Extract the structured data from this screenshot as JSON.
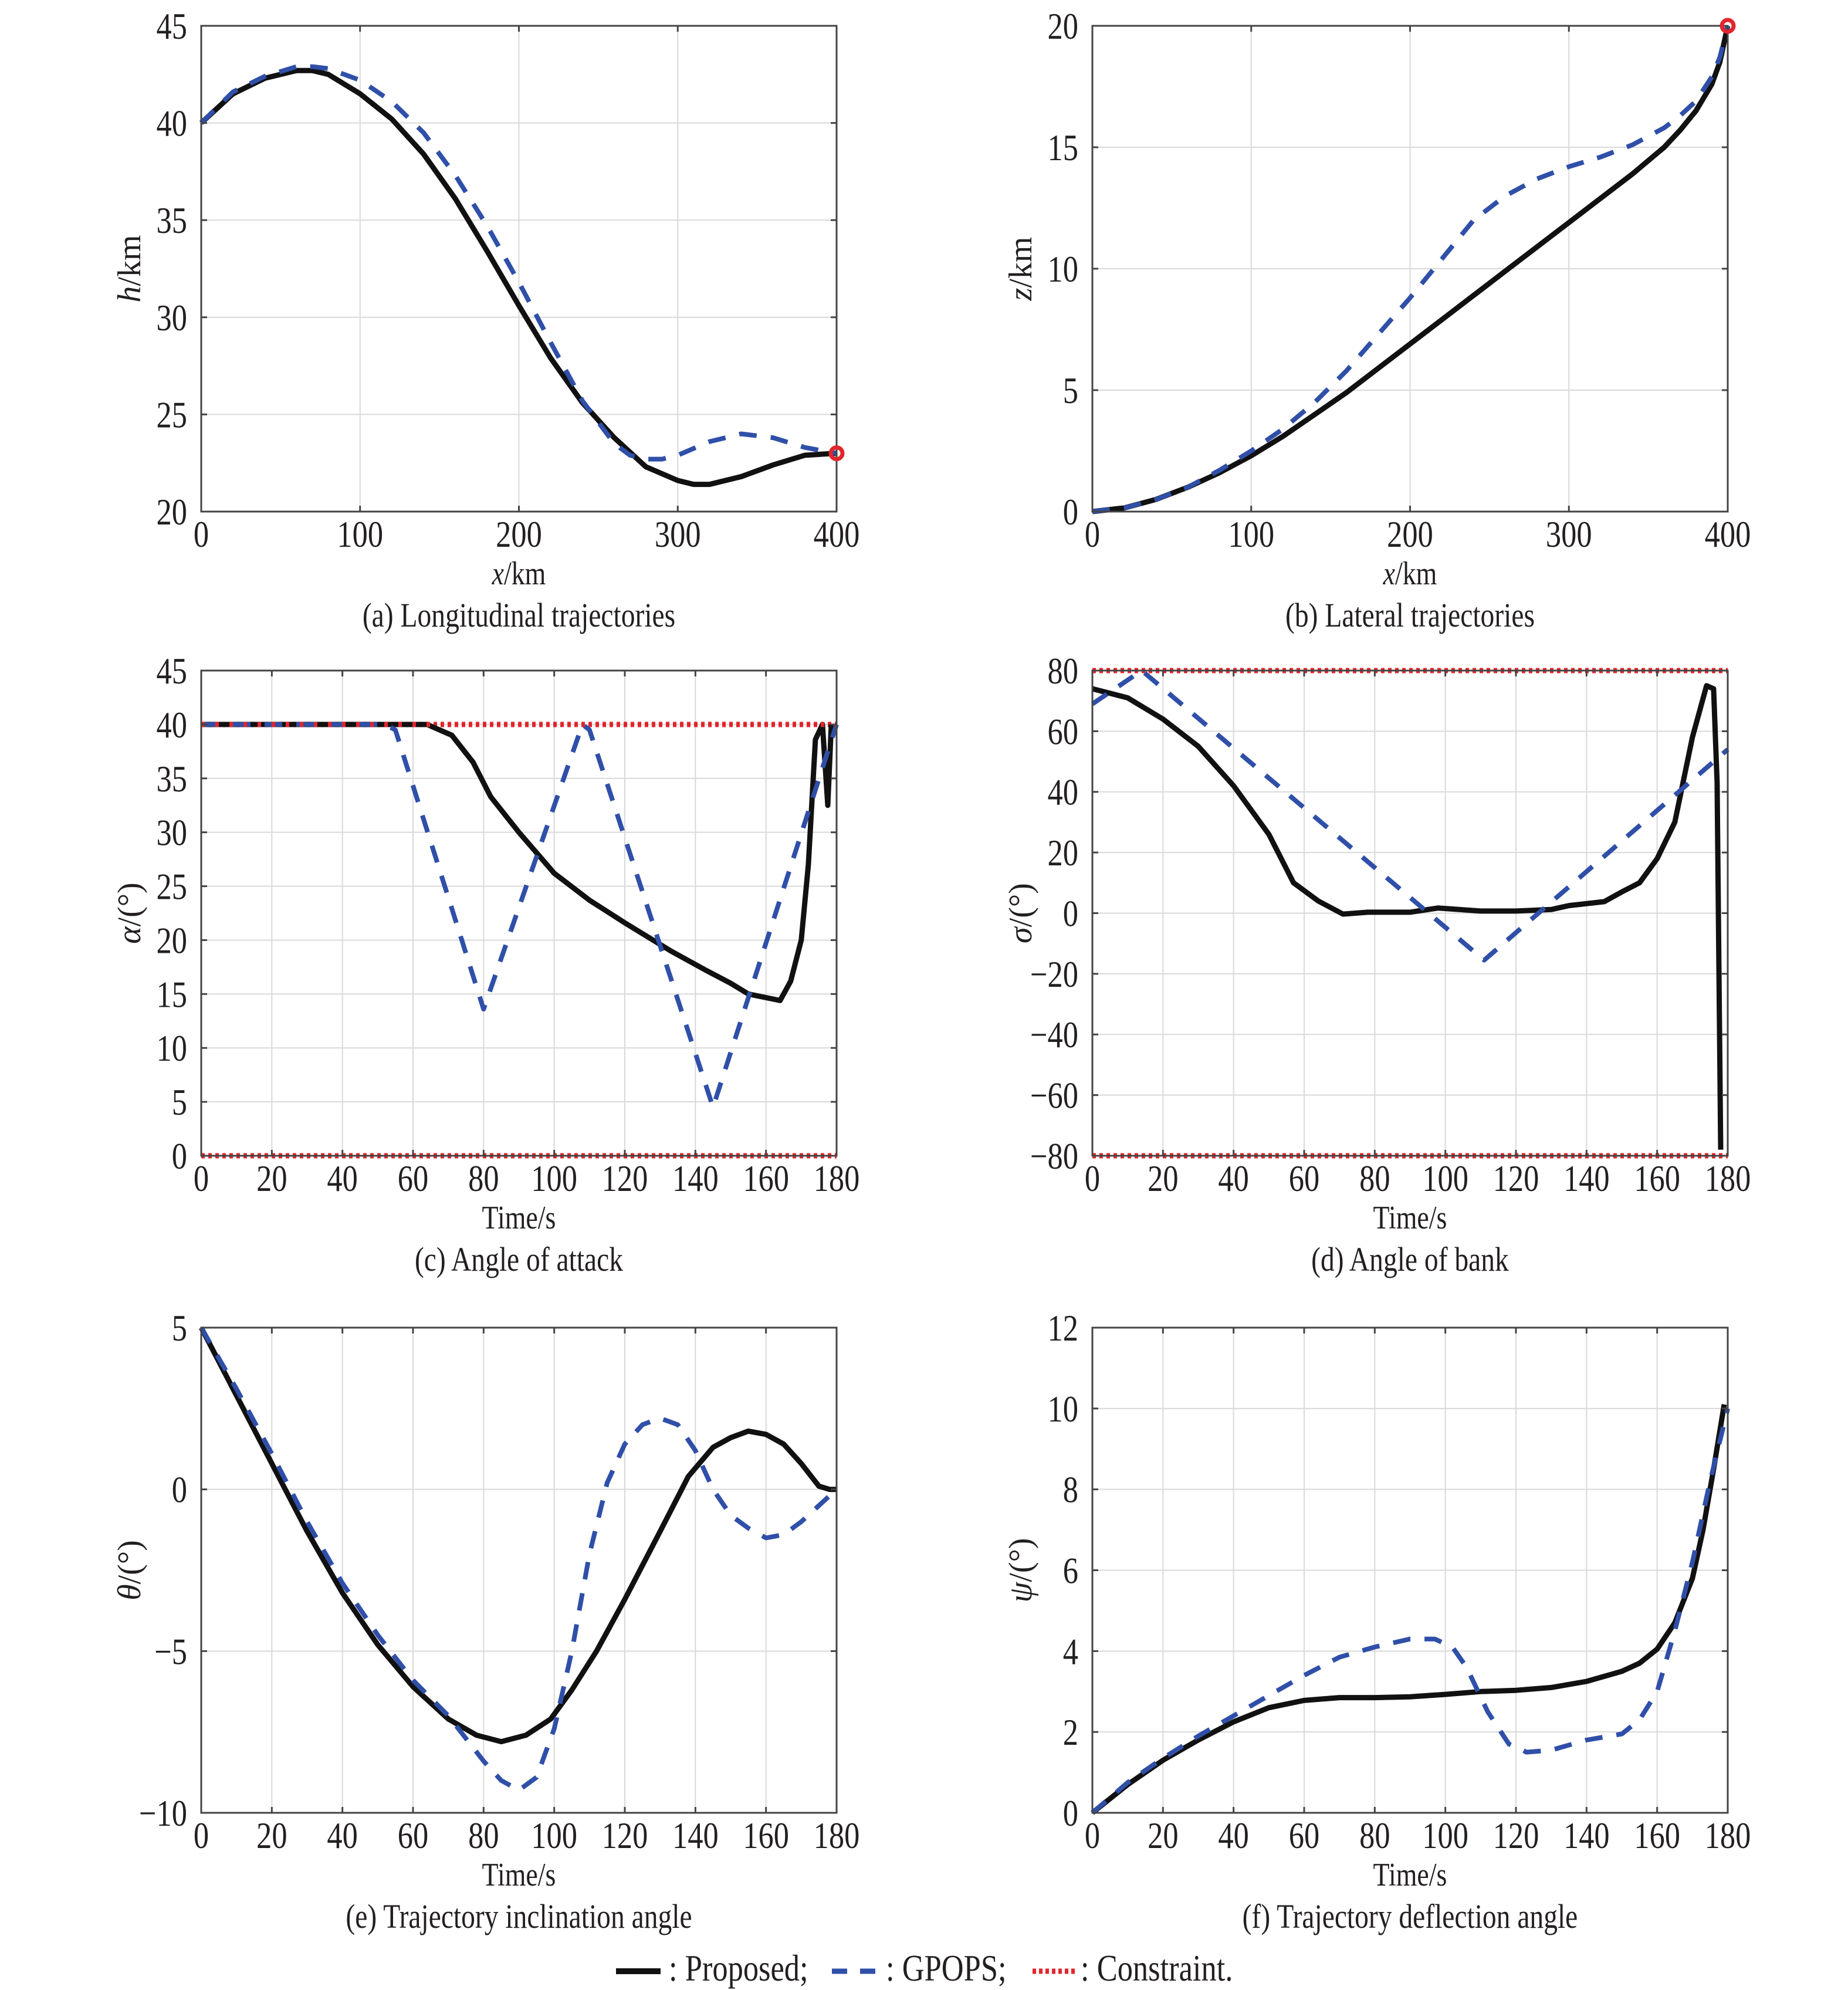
{
  "colors": {
    "proposed": "#111111",
    "gpops": "#2f4fa8",
    "constraint": "#e1262c",
    "grid": "#d9d9d9",
    "axis": "#444444"
  },
  "legend": {
    "items": [
      {
        "label": ": Proposed;",
        "style": "solid",
        "color": "#111111"
      },
      {
        "label": ": GPOPS;",
        "style": "dashed",
        "color": "#2f4fa8"
      },
      {
        "label": ": Constraint.",
        "style": "dotted",
        "color": "#e1262c"
      }
    ],
    "placement": "bottom-center"
  },
  "chart_data": [
    {
      "type": "line",
      "caption": "(a) Longitudinal trajectories",
      "xlabel_var": "x",
      "xlabel_unit": "/km",
      "ylabel_var": "h",
      "ylabel_unit": "/km",
      "xlim": [
        0,
        400
      ],
      "ylim": [
        20,
        45
      ],
      "xticks": [
        0,
        100,
        200,
        300,
        400
      ],
      "yticks": [
        20,
        25,
        30,
        35,
        40,
        45
      ],
      "xtick_labels": [
        "0",
        "100",
        "200",
        "300",
        "400"
      ],
      "ytick_labels": [
        "20",
        "25",
        "30",
        "35",
        "40",
        "45"
      ],
      "grid": true,
      "series": [
        {
          "name": "Proposed",
          "style": "solid",
          "x": [
            0,
            20,
            40,
            60,
            70,
            80,
            100,
            120,
            140,
            160,
            180,
            200,
            220,
            240,
            260,
            280,
            300,
            310,
            320,
            340,
            360,
            380,
            400
          ],
          "y": [
            40,
            41.5,
            42.3,
            42.7,
            42.7,
            42.5,
            41.5,
            40.2,
            38.4,
            36.1,
            33.4,
            30.6,
            27.9,
            25.6,
            23.8,
            22.3,
            21.6,
            21.4,
            21.4,
            21.8,
            22.4,
            22.9,
            23
          ]
        },
        {
          "name": "GPOPS",
          "style": "dashed",
          "x": [
            0,
            20,
            40,
            60,
            70,
            80,
            100,
            120,
            140,
            160,
            180,
            200,
            220,
            240,
            260,
            270,
            280,
            290,
            300,
            320,
            340,
            360,
            380,
            400
          ],
          "y": [
            40,
            41.6,
            42.4,
            42.9,
            42.9,
            42.8,
            42.2,
            41.1,
            39.5,
            37.3,
            34.7,
            31.8,
            28.7,
            25.7,
            23.5,
            22.9,
            22.7,
            22.7,
            22.9,
            23.6,
            24,
            23.8,
            23.3,
            23
          ]
        }
      ],
      "markers": [
        {
          "name": "terminal-constraint",
          "x": 400,
          "y": 23
        }
      ],
      "constraints": []
    },
    {
      "type": "line",
      "caption": "(b) Lateral trajectories",
      "xlabel_var": "x",
      "xlabel_unit": "/km",
      "ylabel_var": "z",
      "ylabel_unit": "/km",
      "xlim": [
        0,
        400
      ],
      "ylim": [
        0,
        20
      ],
      "xticks": [
        0,
        100,
        200,
        300,
        400
      ],
      "yticks": [
        0,
        5,
        10,
        15,
        20
      ],
      "xtick_labels": [
        "0",
        "100",
        "200",
        "300",
        "400"
      ],
      "ytick_labels": [
        "0",
        "5",
        "10",
        "15",
        "20"
      ],
      "grid": true,
      "series": [
        {
          "name": "Proposed",
          "style": "solid",
          "x": [
            0,
            20,
            40,
            60,
            80,
            100,
            120,
            140,
            160,
            180,
            200,
            220,
            240,
            260,
            280,
            300,
            320,
            340,
            360,
            370,
            380,
            390,
            395,
            400
          ],
          "y": [
            0,
            0.15,
            0.5,
            1.0,
            1.6,
            2.3,
            3.1,
            4.0,
            4.9,
            5.9,
            6.9,
            7.9,
            8.9,
            9.9,
            10.9,
            11.9,
            12.9,
            13.9,
            15.0,
            15.7,
            16.5,
            17.6,
            18.5,
            20
          ]
        },
        {
          "name": "GPOPS",
          "style": "dashed",
          "x": [
            0,
            20,
            40,
            60,
            80,
            100,
            120,
            140,
            160,
            180,
            200,
            220,
            240,
            260,
            280,
            300,
            320,
            340,
            360,
            370,
            380,
            390,
            395,
            400
          ],
          "y": [
            0,
            0.15,
            0.5,
            1.0,
            1.7,
            2.5,
            3.4,
            4.5,
            5.8,
            7.3,
            8.8,
            10.4,
            12.0,
            13.0,
            13.7,
            14.2,
            14.6,
            15.1,
            15.8,
            16.3,
            16.9,
            17.9,
            18.7,
            20
          ]
        }
      ],
      "markers": [
        {
          "name": "terminal-constraint",
          "x": 400,
          "y": 20
        }
      ],
      "constraints": []
    },
    {
      "type": "line",
      "caption": "(c) Angle of attack",
      "xlabel_var": "",
      "xlabel_unit": "Time/s",
      "ylabel_var": "α",
      "ylabel_unit": "/(°)",
      "xlim": [
        0,
        180
      ],
      "ylim": [
        0,
        45
      ],
      "xticks": [
        0,
        20,
        40,
        60,
        80,
        100,
        120,
        140,
        160,
        180
      ],
      "yticks": [
        0,
        5,
        10,
        15,
        20,
        25,
        30,
        35,
        40,
        45
      ],
      "xtick_labels": [
        "0",
        "20",
        "40",
        "60",
        "80",
        "100",
        "120",
        "140",
        "160",
        "180"
      ],
      "ytick_labels": [
        "0",
        "5",
        "10",
        "15",
        "20",
        "25",
        "30",
        "35",
        "40",
        "45"
      ],
      "grid": true,
      "series": [
        {
          "name": "Proposed",
          "style": "solid",
          "x": [
            0,
            64,
            71,
            77,
            82,
            90,
            100,
            110,
            120,
            133,
            143,
            150,
            155,
            164,
            167,
            170,
            172,
            174,
            176,
            177.5,
            178.5
          ],
          "y": [
            40,
            40,
            39,
            36.5,
            33.3,
            30,
            26.2,
            23.7,
            21.6,
            19,
            17.2,
            16,
            15,
            14.4,
            16.2,
            20,
            27,
            38.6,
            40,
            32.5,
            40
          ]
        },
        {
          "name": "GPOPS",
          "style": "dashed",
          "x": [
            0,
            52,
            55,
            80,
            108,
            110,
            145,
            178,
            180
          ],
          "y": [
            40,
            40,
            39.5,
            13.6,
            40,
            39.5,
            4.5,
            38,
            40
          ]
        }
      ],
      "markers": [],
      "constraints": [
        40,
        0
      ]
    },
    {
      "type": "line",
      "caption": "(d) Angle of bank",
      "xlabel_var": "",
      "xlabel_unit": "Time/s",
      "ylabel_var": "σ",
      "ylabel_unit": "/(°)",
      "xlim": [
        0,
        180
      ],
      "ylim": [
        -80,
        80
      ],
      "xticks": [
        0,
        20,
        40,
        60,
        80,
        100,
        120,
        140,
        160,
        180
      ],
      "yticks": [
        -80,
        -60,
        -40,
        -20,
        0,
        20,
        40,
        60,
        80
      ],
      "xtick_labels": [
        "0",
        "20",
        "40",
        "60",
        "80",
        "100",
        "120",
        "140",
        "160",
        "180"
      ],
      "ytick_labels": [
        "−80",
        "−60",
        "−40",
        "−20",
        "0",
        "20",
        "40",
        "60",
        "80"
      ],
      "grid": true,
      "series": [
        {
          "name": "Proposed",
          "style": "solid",
          "x": [
            0,
            10,
            20,
            30,
            40,
            50,
            57,
            64,
            71,
            78,
            90,
            98,
            110,
            120,
            130,
            135,
            145,
            150,
            155,
            160,
            165,
            170,
            174,
            176,
            177,
            178
          ],
          "y": [
            74,
            71,
            64,
            55,
            42,
            26,
            10,
            4,
            -0.3,
            0.3,
            0.3,
            1.7,
            0.7,
            0.7,
            1.2,
            2.5,
            3.8,
            7,
            10,
            18,
            30,
            58,
            75,
            74,
            43,
            -78
          ]
        },
        {
          "name": "GPOPS",
          "style": "dashed",
          "x": [
            0,
            14,
            111,
            180
          ],
          "y": [
            69,
            80,
            -15.5,
            54
          ]
        }
      ],
      "markers": [],
      "constraints": [
        80,
        -80
      ]
    },
    {
      "type": "line",
      "caption": "(e) Trajectory inclination angle",
      "xlabel_var": "",
      "xlabel_unit": "Time/s",
      "ylabel_var": "θ",
      "ylabel_unit": "/(°)",
      "xlim": [
        0,
        180
      ],
      "ylim": [
        -10,
        5
      ],
      "xticks": [
        0,
        20,
        40,
        60,
        80,
        100,
        120,
        140,
        160,
        180
      ],
      "yticks": [
        -10,
        -5,
        0,
        5
      ],
      "xtick_labels": [
        "0",
        "20",
        "40",
        "60",
        "80",
        "100",
        "120",
        "140",
        "160",
        "180"
      ],
      "ytick_labels": [
        "−10",
        "−5",
        "0",
        "5"
      ],
      "grid": true,
      "series": [
        {
          "name": "Proposed",
          "style": "solid",
          "x": [
            0,
            10,
            20,
            30,
            40,
            50,
            60,
            70,
            78,
            85,
            92,
            99,
            105,
            112,
            120,
            130,
            138,
            145,
            150,
            155,
            160,
            165,
            170,
            175,
            178,
            180
          ],
          "y": [
            5,
            2.9,
            0.8,
            -1.3,
            -3.2,
            -4.8,
            -6.1,
            -7.1,
            -7.6,
            -7.8,
            -7.6,
            -7.1,
            -6.2,
            -5,
            -3.4,
            -1.3,
            0.4,
            1.3,
            1.6,
            1.8,
            1.7,
            1.4,
            0.8,
            0.1,
            0,
            0
          ]
        },
        {
          "name": "GPOPS",
          "style": "dashed",
          "x": [
            0,
            10,
            20,
            30,
            40,
            50,
            60,
            70,
            80,
            85,
            90,
            95,
            100,
            105,
            110,
            115,
            120,
            125,
            130,
            135,
            140,
            145,
            150,
            155,
            160,
            165,
            170,
            175,
            180
          ],
          "y": [
            5,
            3.1,
            1.1,
            -1,
            -2.9,
            -4.5,
            -5.9,
            -7,
            -8.4,
            -9,
            -9.3,
            -8.9,
            -7.4,
            -5,
            -2,
            0.2,
            1.4,
            2,
            2.2,
            2,
            1.2,
            0,
            -0.8,
            -1.2,
            -1.5,
            -1.4,
            -1,
            -0.5,
            0
          ]
        }
      ],
      "markers": [],
      "constraints": []
    },
    {
      "type": "line",
      "caption": "(f) Trajectory deflection angle",
      "xlabel_var": "",
      "xlabel_unit": "Time/s",
      "ylabel_var": "ψ",
      "ylabel_unit": "/(°)",
      "xlim": [
        0,
        180
      ],
      "ylim": [
        0,
        12
      ],
      "xticks": [
        0,
        20,
        40,
        60,
        80,
        100,
        120,
        140,
        160,
        180
      ],
      "yticks": [
        0,
        2,
        4,
        6,
        8,
        10,
        12
      ],
      "xtick_labels": [
        "0",
        "20",
        "40",
        "60",
        "80",
        "100",
        "120",
        "140",
        "160",
        "180"
      ],
      "ytick_labels": [
        "0",
        "2",
        "4",
        "6",
        "8",
        "10",
        "12"
      ],
      "grid": true,
      "series": [
        {
          "name": "Proposed",
          "style": "solid",
          "x": [
            0,
            10,
            20,
            30,
            40,
            50,
            60,
            70,
            80,
            90,
            100,
            110,
            120,
            130,
            140,
            150,
            155,
            160,
            165,
            170,
            173,
            176,
            179
          ],
          "y": [
            0,
            0.7,
            1.3,
            1.8,
            2.25,
            2.6,
            2.78,
            2.85,
            2.85,
            2.87,
            2.93,
            3.0,
            3.03,
            3.1,
            3.25,
            3.5,
            3.7,
            4.05,
            4.7,
            5.8,
            7,
            8.5,
            10.1
          ]
        },
        {
          "name": "GPOPS",
          "style": "dashed",
          "x": [
            0,
            10,
            20,
            30,
            40,
            50,
            60,
            70,
            80,
            90,
            97,
            102,
            106,
            112,
            118,
            123,
            130,
            140,
            150,
            155,
            160,
            165,
            170,
            175,
            180
          ],
          "y": [
            0,
            0.75,
            1.35,
            1.9,
            2.4,
            2.9,
            3.4,
            3.85,
            4.1,
            4.3,
            4.3,
            4.1,
            3.6,
            2.5,
            1.7,
            1.5,
            1.55,
            1.8,
            1.95,
            2.3,
            3.0,
            4.5,
            6.2,
            8.2,
            10
          ]
        }
      ],
      "markers": [],
      "constraints": []
    }
  ]
}
